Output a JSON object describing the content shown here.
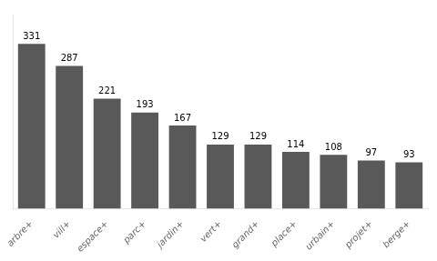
{
  "chart_data": {
    "type": "bar",
    "categories": [
      "arbre+",
      "vill+",
      "espace+",
      "parc+",
      "jardin+",
      "vert+",
      "grand+",
      "place+",
      "urbain+",
      "projet+",
      "berge+"
    ],
    "values": [
      331,
      287,
      221,
      193,
      167,
      129,
      129,
      114,
      108,
      97,
      93
    ],
    "color": "#595959",
    "ylim": [
      0,
      390
    ],
    "grid": false,
    "data_labels": true,
    "tick_labels": "x"
  }
}
